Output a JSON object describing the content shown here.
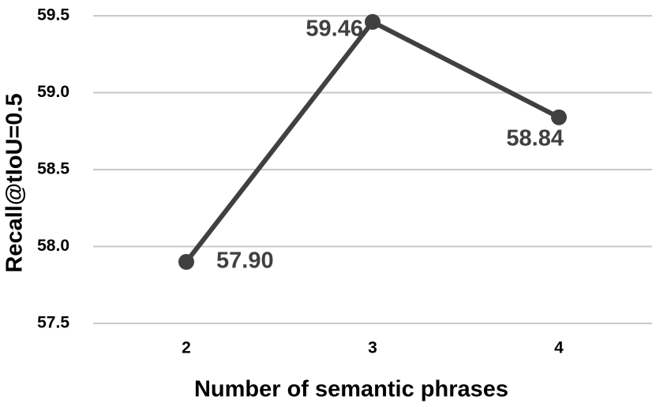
{
  "chart_data": {
    "type": "line",
    "x_label": "Number of semantic phrases",
    "y_label": "Recall@tIoU=0.5",
    "categories": [
      "2",
      "3",
      "4"
    ],
    "values": [
      57.9,
      59.46,
      58.84
    ],
    "value_labels": [
      "57.90",
      "59.46",
      "58.84"
    ],
    "color": "#404040",
    "ylim": [
      57.5,
      59.5
    ],
    "yticks": [
      57.5,
      {
        "value": 58,
        "label": "58.0"
      },
      58.5,
      {
        "value": 59,
        "label": "59.0"
      },
      59.5
    ],
    "grid": true
  }
}
